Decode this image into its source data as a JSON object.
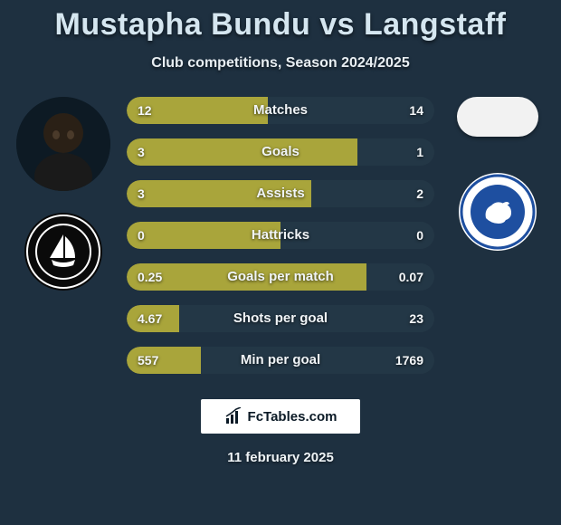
{
  "background_color": "#1e3040",
  "title": "Mustapha Bundu vs Langstaff",
  "title_color": "#d5e6f0",
  "title_fontsize": 34,
  "subtitle": "Club competitions, Season 2024/2025",
  "subtitle_fontsize": 16,
  "footer_brand": "FcTables.com",
  "footer_date": "11 february 2025",
  "left": {
    "player_name": "Mustapha Bundu",
    "avatar_kind": "photo-silhouette",
    "club_badge": {
      "name": "Plymouth",
      "bg_color": "#0a0a0a",
      "ring_color": "#ffffff",
      "icon": "sailboat"
    }
  },
  "right": {
    "player_name": "Langstaff",
    "flag_bg": "#f2f2f2",
    "club_badge": {
      "name": "Millwall",
      "bg_color": "#ffffff",
      "ring_color": "#1e4fa0",
      "inner_bg": "#1e4fa0",
      "icon": "lion"
    }
  },
  "bar_style": {
    "height": 30,
    "radius": 15,
    "gap": 16,
    "track_color": "#1b2c3a",
    "left_fill_color": "#a9a53b",
    "right_fill_color": "#233746",
    "label_color": "#f0f4f7",
    "value_color": "#f5f8fa",
    "label_fontsize": 15,
    "value_fontsize": 14
  },
  "stats": [
    {
      "label": "Matches",
      "left_text": "12",
      "right_text": "14",
      "left_pct": 46,
      "right_pct": 54
    },
    {
      "label": "Goals",
      "left_text": "3",
      "right_text": "1",
      "left_pct": 75,
      "right_pct": 25
    },
    {
      "label": "Assists",
      "left_text": "3",
      "right_text": "2",
      "left_pct": 60,
      "right_pct": 40
    },
    {
      "label": "Hattricks",
      "left_text": "0",
      "right_text": "0",
      "left_pct": 50,
      "right_pct": 50
    },
    {
      "label": "Goals per match",
      "left_text": "0.25",
      "right_text": "0.07",
      "left_pct": 78,
      "right_pct": 22
    },
    {
      "label": "Shots per goal",
      "left_text": "4.67",
      "right_text": "23",
      "left_pct": 17,
      "right_pct": 83
    },
    {
      "label": "Min per goal",
      "left_text": "557",
      "right_text": "1769",
      "left_pct": 24,
      "right_pct": 76
    }
  ]
}
